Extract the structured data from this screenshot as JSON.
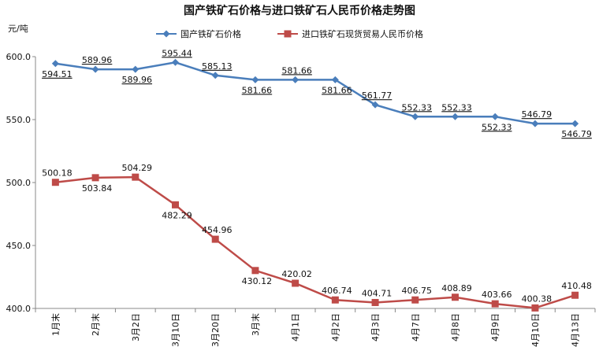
{
  "chart_data": {
    "type": "line",
    "title": "国产铁矿石价格与进口铁矿石人民币价格走势图",
    "ylabel": "元/吨",
    "xlabel": "",
    "ylim": [
      400,
      600
    ],
    "yticks": [
      "400.0",
      "450.0",
      "500.0",
      "550.0",
      "600.0"
    ],
    "categories": [
      "1月末",
      "2月末",
      "3月2日",
      "3月10日",
      "3月20日",
      "3月末",
      "4月1日",
      "4月2日",
      "4月3日",
      "4月7日",
      "4月8日",
      "4月9日",
      "4月10日",
      "4月13日"
    ],
    "legend_position": "top",
    "grid": false,
    "series": [
      {
        "name": "国产铁矿石价格",
        "color": "#4a7ebb",
        "marker": "diamond",
        "values": [
          594.51,
          589.96,
          589.96,
          595.44,
          585.13,
          581.66,
          581.66,
          581.66,
          561.77,
          552.33,
          552.33,
          552.33,
          546.79,
          546.79
        ],
        "labels": [
          "594.51",
          "589.96",
          "589.96",
          "595.44",
          "585.13",
          "581.66",
          "581.66",
          "581.66",
          "561.77",
          "552.33",
          "552.33",
          "552.33",
          "546.79",
          "546.79"
        ]
      },
      {
        "name": "进口铁矿石现货贸易人民币价格",
        "color": "#be4b48",
        "marker": "square",
        "values": [
          500.18,
          503.84,
          504.29,
          482.29,
          454.96,
          430.12,
          420.02,
          406.74,
          404.71,
          406.75,
          408.89,
          403.66,
          400.38,
          410.48
        ],
        "labels": [
          "500.18",
          "503.84",
          "504.29",
          "482.29",
          "454.96",
          "430.12",
          "420.02",
          "406.74",
          "404.71",
          "406.75",
          "408.89",
          "403.66",
          "400.38",
          "410.48"
        ]
      }
    ]
  }
}
